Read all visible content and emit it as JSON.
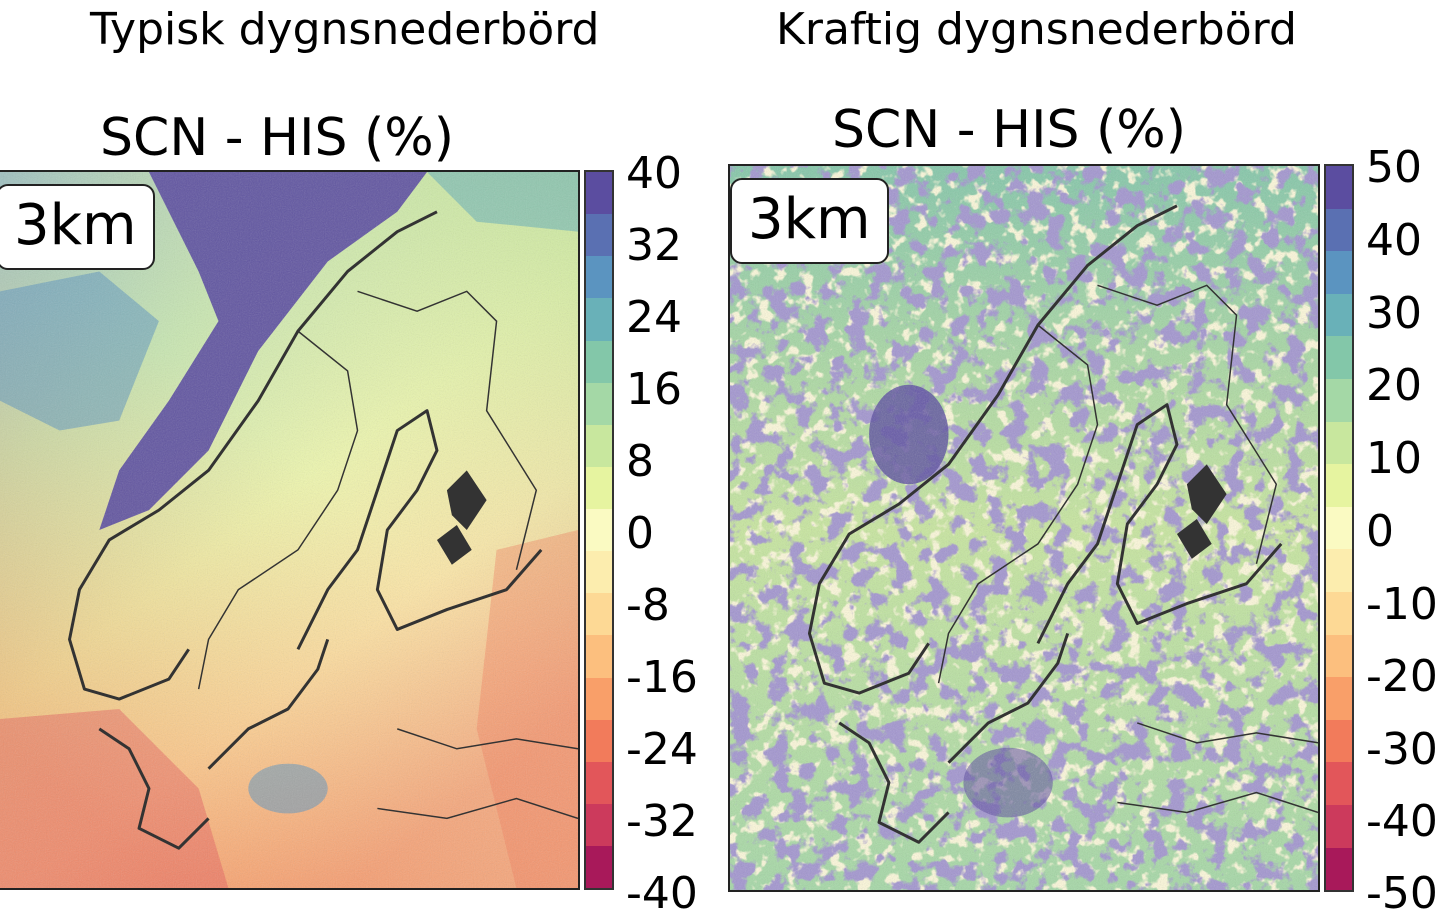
{
  "panels": [
    {
      "heading": "Typisk dygnsnederbörd",
      "map_title": "SCN - HIS (%)",
      "badge": "3km",
      "colorbar_ticks": [
        "40",
        "32",
        "24",
        "16",
        "8",
        "0",
        "-8",
        "-16",
        "-24",
        "-32",
        "-40"
      ]
    },
    {
      "heading": "Kraftig dygnsnederbörd",
      "map_title": "SCN - HIS (%)",
      "badge": "3km",
      "colorbar_ticks": [
        "50",
        "40",
        "30",
        "20",
        "10",
        "0",
        "-10",
        "-20",
        "-30",
        "-40",
        "-50"
      ]
    }
  ],
  "colormap": [
    "#5b4da0",
    "#5a70b2",
    "#5b94c0",
    "#69b1b8",
    "#83c7a9",
    "#a4d8a6",
    "#c8e79e",
    "#e6f4a0",
    "#fafac2",
    "#fcedae",
    "#fdd995",
    "#fcbf7e",
    "#f99f69",
    "#f27b5b",
    "#e2565a",
    "#cc3a5c",
    "#a8195a"
  ]
}
